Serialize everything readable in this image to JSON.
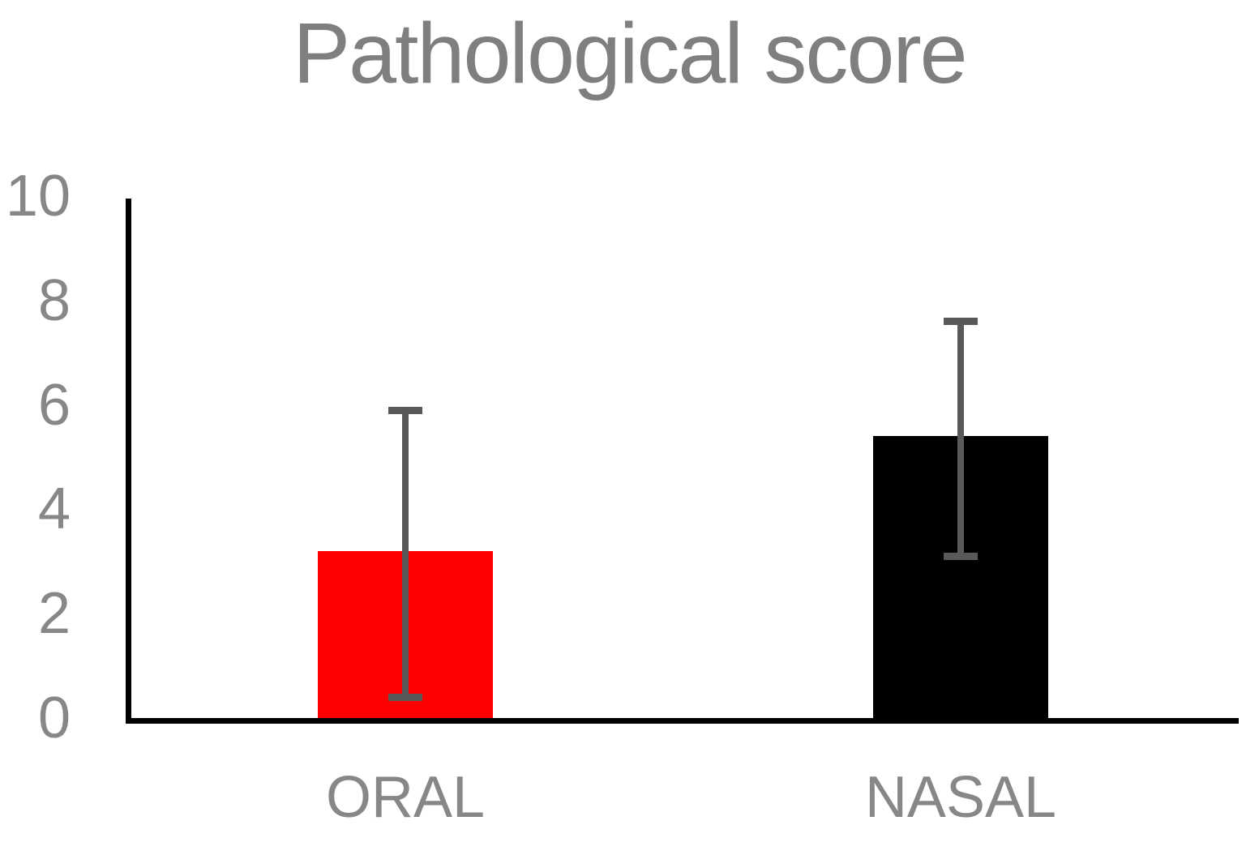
{
  "title": "Pathological score",
  "chart_data": {
    "type": "bar",
    "title": "Pathological score",
    "categories": [
      "ORAL",
      "NASAL"
    ],
    "series": [
      {
        "name": "Pathological score",
        "values": [
          3.2,
          5.4
        ],
        "error_low": [
          0.4,
          3.1
        ],
        "error_high": [
          5.9,
          7.6
        ]
      }
    ],
    "xlabel": "",
    "ylabel": "",
    "ylim": [
      0,
      10
    ],
    "yticks": [
      0,
      2,
      4,
      6,
      8,
      10
    ],
    "grid": false,
    "legend": false,
    "bar_colors": [
      "#FF0000",
      "#000000"
    ],
    "colors": {
      "title": "#7F7F7F",
      "tick_labels": "#878787",
      "category_labels": "#878787",
      "error_bar": "#595959",
      "axis": "#000000"
    }
  }
}
